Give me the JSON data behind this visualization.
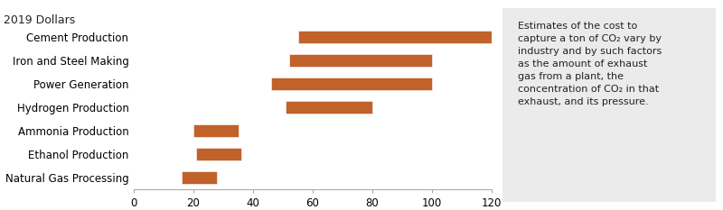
{
  "title": "2019 Dollars",
  "categories": [
    "Natural Gas Processing",
    "Ethanol Production",
    "Ammonia Production",
    "Hydrogen Production",
    "Power Generation",
    "Iron and Steel Making",
    "Cement Production"
  ],
  "bar_starts": [
    16,
    21,
    20,
    51,
    46,
    52,
    55
  ],
  "bar_ends": [
    28,
    36,
    35,
    80,
    100,
    100,
    120
  ],
  "bar_color": "#C0622A",
  "xlim": [
    0,
    120
  ],
  "xticks": [
    0,
    20,
    40,
    60,
    80,
    100,
    120
  ],
  "annotation_box_color": "#EBEBEB",
  "annotation_text": "Estimates of the cost to\ncapture a ton of CO₂ vary by\nindustry and by such factors\nas the amount of exhaust\ngas from a plant, the\nconcentration of CO₂ in that\nexhaust, and its pressure.",
  "annotation_fontsize": 8.0,
  "title_fontsize": 9,
  "label_fontsize": 8.5
}
